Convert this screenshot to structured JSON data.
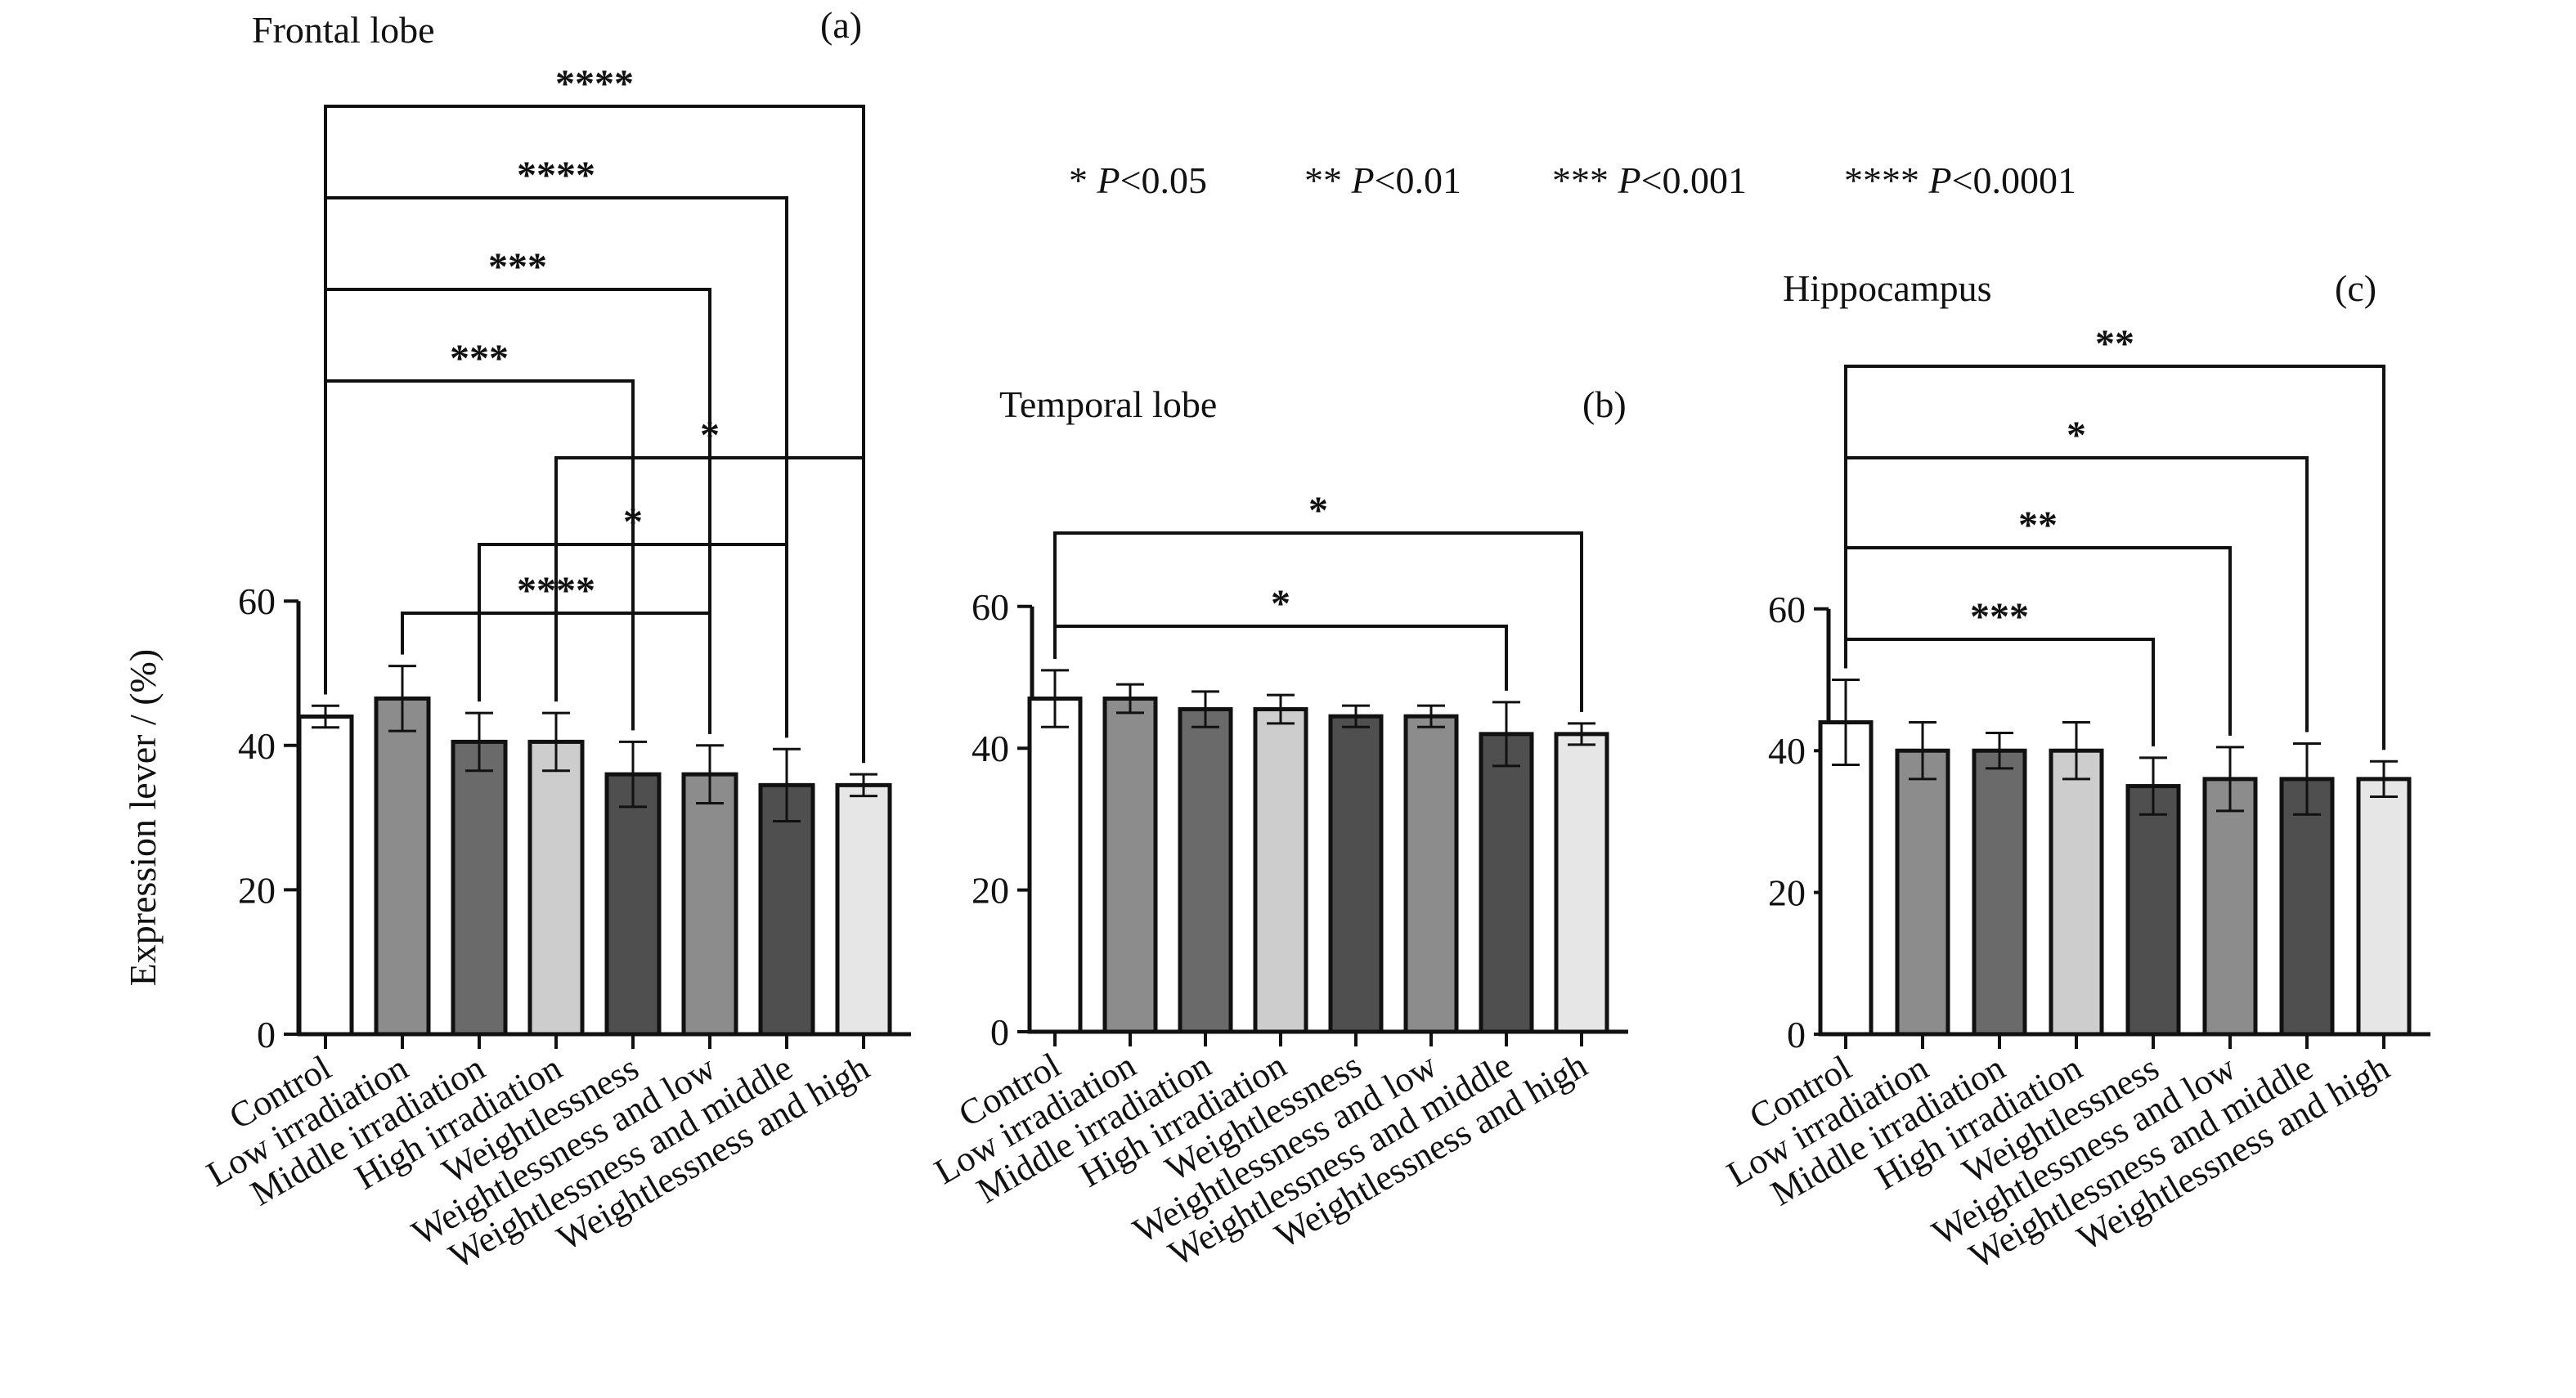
{
  "legend": [
    {
      "stars": "*",
      "p": "P",
      "cmp": "<0.05"
    },
    {
      "stars": "**",
      "p": "P",
      "cmp": "<0.01"
    },
    {
      "stars": "***",
      "p": "P",
      "cmp": "<0.001"
    },
    {
      "stars": "****",
      "p": "P",
      "cmp": "<0.0001"
    }
  ],
  "chart_data": [
    {
      "type": "bar",
      "title": "Frontal lobe",
      "panel": "(a)",
      "ylabel": "Expression lever / (%)",
      "ylim": [
        0,
        60
      ],
      "yticks": [
        "0",
        "20",
        "40",
        "60"
      ],
      "categories": [
        "Control",
        "Low irradiation",
        "Middle irradiation",
        "High irradiation",
        "Weightlessness",
        "Weightlessness and low",
        "Weightlessness and middle",
        "Weightlessness and high"
      ],
      "values": [
        44,
        46.5,
        40.5,
        40.5,
        36,
        36,
        34.5,
        34.5
      ],
      "errors": [
        1.5,
        4.5,
        4,
        4,
        4.5,
        4,
        5,
        1.5
      ],
      "colors": [
        "#ffffff",
        "#8c8c8c",
        "#6a6a6a",
        "#cdcdcd",
        "#4f4f4f",
        "#8c8c8c",
        "#4f4f4f",
        "#e6e6e6"
      ],
      "significance": [
        {
          "from": 0,
          "to": 7,
          "label": "****"
        },
        {
          "from": 0,
          "to": 6,
          "label": "****"
        },
        {
          "from": 0,
          "to": 5,
          "label": "***"
        },
        {
          "from": 0,
          "to": 4,
          "label": "***"
        },
        {
          "from": 3,
          "to": 7,
          "label": "*"
        },
        {
          "from": 2,
          "to": 6,
          "label": "*"
        },
        {
          "from": 1,
          "to": 5,
          "label": "****"
        }
      ]
    },
    {
      "type": "bar",
      "title": "Temporal lobe",
      "panel": "(b)",
      "ylabel": "",
      "ylim": [
        0,
        60
      ],
      "yticks": [
        "0",
        "20",
        "40",
        "60"
      ],
      "categories": [
        "Control",
        "Low irradiation",
        "Middle irradiation",
        "High irradiation",
        "Weightlessness",
        "Weightlessness and low",
        "Weightlessness and middle",
        "Weightlessness and high"
      ],
      "values": [
        47,
        47,
        45.5,
        45.5,
        44.5,
        44.5,
        42,
        42
      ],
      "errors": [
        4,
        2,
        2.5,
        2,
        1.5,
        1.5,
        4.5,
        1.5
      ],
      "colors": [
        "#ffffff",
        "#8c8c8c",
        "#6a6a6a",
        "#cdcdcd",
        "#4f4f4f",
        "#8c8c8c",
        "#4f4f4f",
        "#e6e6e6"
      ],
      "significance": [
        {
          "from": 0,
          "to": 7,
          "label": "*"
        },
        {
          "from": 0,
          "to": 6,
          "label": "*"
        }
      ]
    },
    {
      "type": "bar",
      "title": "Hippocampus",
      "panel": "(c)",
      "ylabel": "",
      "ylim": [
        0,
        60
      ],
      "yticks": [
        "0",
        "20",
        "40",
        "60"
      ],
      "categories": [
        "Control",
        "Low irradiation",
        "Middle irradiation",
        "High irradiation",
        "Weightlessness",
        "Weightlessness and low",
        "Weightlessness and middle",
        "Weightlessness and high"
      ],
      "values": [
        44,
        40,
        40,
        40,
        35,
        36,
        36,
        36
      ],
      "errors": [
        6,
        4,
        2.5,
        4,
        4,
        4.5,
        5,
        2.5
      ],
      "colors": [
        "#ffffff",
        "#8c8c8c",
        "#6a6a6a",
        "#cdcdcd",
        "#4f4f4f",
        "#8c8c8c",
        "#4f4f4f",
        "#e6e6e6"
      ],
      "significance": [
        {
          "from": 0,
          "to": 7,
          "label": "**"
        },
        {
          "from": 0,
          "to": 6,
          "label": "*"
        },
        {
          "from": 0,
          "to": 5,
          "label": "**"
        },
        {
          "from": 0,
          "to": 4,
          "label": "***"
        }
      ]
    }
  ]
}
